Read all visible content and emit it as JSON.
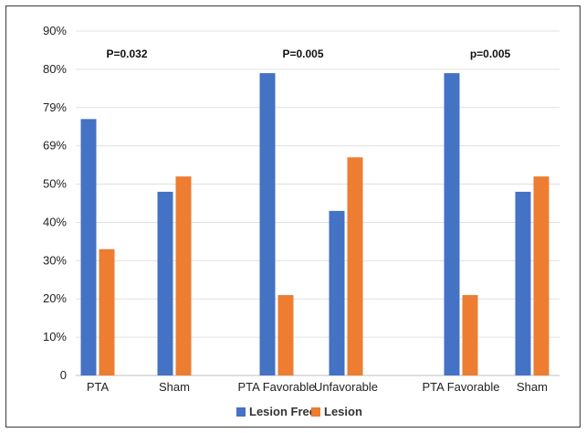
{
  "chart_data": {
    "type": "bar",
    "title": "",
    "xlabel": "",
    "ylabel": "",
    "y_tick_labels": [
      "0",
      "10%",
      "20%",
      "30%",
      "40%",
      "50%",
      "69%",
      "79%",
      "80%",
      "90%"
    ],
    "ylim": [
      0,
      90
    ],
    "grid": true,
    "legend_position": "bottom",
    "categories": [
      "PTA",
      "Sham",
      "PTA Favorable",
      "Unfavorable",
      "PTA Favorable",
      "Sham"
    ],
    "series": [
      {
        "name": "Lesion Free",
        "color": "#4472C4",
        "values": [
          67,
          48,
          79,
          43,
          79,
          48
        ]
      },
      {
        "name": "Lesion",
        "color": "#ED7D31",
        "values": [
          33,
          52,
          21,
          57,
          21,
          52
        ]
      }
    ],
    "annotations": [
      {
        "text": "P=0.032",
        "group": 0
      },
      {
        "text": "P=0.005",
        "group": 1
      },
      {
        "text": "p=0.005",
        "group": 2
      }
    ]
  }
}
